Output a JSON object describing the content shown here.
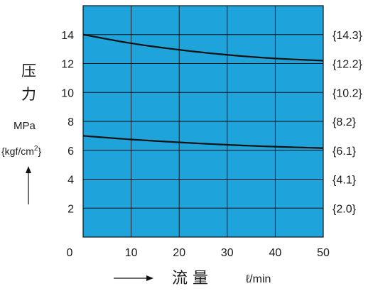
{
  "chart_data": {
    "type": "line",
    "title": "",
    "xlabel": "流 量",
    "xunit": "ℓ/min",
    "ylabel_chars": [
      "压",
      "力"
    ],
    "yunit": "MPa",
    "yunit_alt_prefix": "{kgf/cm",
    "yunit_alt_sup": "2",
    "yunit_alt_suffix": "}",
    "xlim": [
      0,
      50
    ],
    "ylim": [
      0,
      16
    ],
    "x_ticks": [
      0,
      10,
      20,
      30,
      40,
      50
    ],
    "y_ticks": [
      2,
      4,
      6,
      8,
      10,
      12,
      14
    ],
    "y_right_ticks": [
      {
        "y": 2,
        "label": "{2.0}"
      },
      {
        "y": 4,
        "label": "{4.1}"
      },
      {
        "y": 6,
        "label": "{6.1}"
      },
      {
        "y": 8,
        "label": "{8.2}"
      },
      {
        "y": 10,
        "label": "{10.2}"
      },
      {
        "y": 12,
        "label": "{12.2}"
      },
      {
        "y": 14,
        "label": "{14.3}"
      }
    ],
    "grid": true,
    "background_color": "#1ea3db",
    "line_color": "#111111",
    "series": [
      {
        "x": [
          0,
          10,
          20,
          30,
          40,
          50
        ],
        "y": [
          14.0,
          13.4,
          12.95,
          12.6,
          12.35,
          12.2
        ]
      },
      {
        "x": [
          0,
          10,
          20,
          30,
          40,
          50
        ],
        "y": [
          7.0,
          6.75,
          6.55,
          6.38,
          6.25,
          6.15
        ]
      }
    ]
  }
}
